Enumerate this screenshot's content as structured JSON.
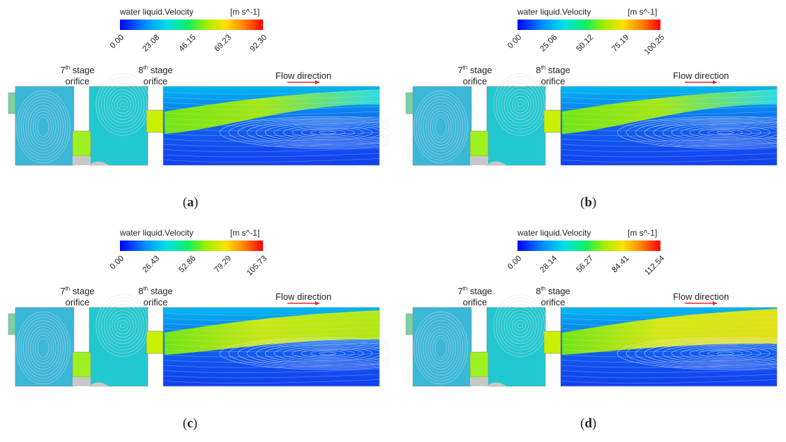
{
  "colorbar_title": "water liquid.Velocity",
  "colorbar_unit": "[m s^-1]",
  "labels": {
    "stage7_top": "7th stage",
    "stage8_top": "8th stage",
    "orifice": "orifice",
    "flow_direction": "Flow direction"
  },
  "panels": [
    {
      "letter": "a",
      "ticks": [
        "0.00",
        "23.08",
        "46.15",
        "69.23",
        "92.30"
      ],
      "jet": "mid"
    },
    {
      "letter": "b",
      "ticks": [
        "0.00",
        "25.06",
        "50.12",
        "75.19",
        "100.25"
      ],
      "jet": "mid"
    },
    {
      "letter": "c",
      "ticks": [
        "0.00",
        "26.43",
        "52.86",
        "79.29",
        "105.73"
      ],
      "jet": "strong"
    },
    {
      "letter": "d",
      "ticks": [
        "0.00",
        "28.14",
        "56.27",
        "84.41",
        "112.54"
      ],
      "jet": "strongest"
    }
  ],
  "colors": {
    "arrow": "#e0282b",
    "wall": "#c8c8c8"
  }
}
